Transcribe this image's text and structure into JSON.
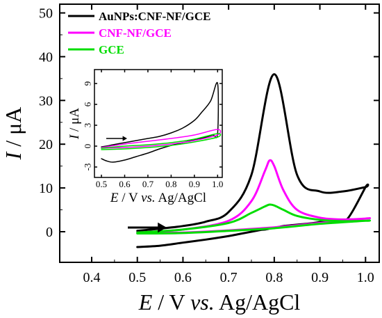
{
  "chart_data": [
    {
      "type": "line",
      "xlabel": {
        "var": "E",
        "rest": " / V ",
        "italic": "vs.",
        "ref": " Ag/AgCl"
      },
      "ylabel": {
        "var": "I",
        "rest": " / μA"
      },
      "xlim": [
        0.33,
        1.03
      ],
      "ylim": [
        -7,
        52
      ],
      "xticks": [
        "0.4",
        "0.5",
        "0.6",
        "0.7",
        "0.8",
        "0.9",
        "1.0"
      ],
      "yticks": [
        "0",
        "10",
        "20",
        "30",
        "40",
        "50"
      ],
      "legend_position": "top-left",
      "annotation": "arrow pointing right (scan direction)",
      "series": [
        {
          "name": "AuNPs:CNF-NF/GCE",
          "color": "#000000",
          "x": [
            0.5,
            0.55,
            0.6,
            0.65,
            0.7,
            0.72,
            0.74,
            0.76,
            0.77,
            0.78,
            0.79,
            0.8,
            0.81,
            0.82,
            0.84,
            0.86,
            0.88,
            0.9,
            0.93,
            0.96,
            1.0,
            1.0,
            0.95,
            0.9,
            0.85,
            0.8,
            0.75,
            0.7,
            0.65,
            0.6,
            0.55,
            0.52,
            0.5
          ],
          "y": [
            -3.5,
            -3.2,
            -2.5,
            -1.8,
            -1.0,
            -0.6,
            -0.2,
            0.2,
            0.4,
            0.5,
            0.7,
            0.9,
            1.1,
            1.3,
            1.5,
            1.7,
            1.9,
            2.2,
            2.5,
            2.9,
            10.2,
            10.2,
            9.2,
            9.2,
            13.0,
            36.0,
            13.0,
            4.5,
            2.3,
            1.3,
            0.7,
            0.4,
            0.2
          ]
        },
        {
          "name": "CNF-NF/GCE",
          "color": "#ff00ff",
          "x": [
            0.5,
            0.6,
            0.7,
            0.75,
            0.78,
            0.79,
            0.8,
            0.82,
            0.85,
            0.9,
            0.95,
            1.0,
            1.0,
            0.9,
            0.8,
            0.7,
            0.6,
            0.5
          ],
          "y": [
            -0.2,
            0.5,
            2.5,
            7.0,
            14.0,
            16.3,
            15.0,
            9.5,
            5.0,
            3.2,
            2.8,
            3.0,
            3.0,
            2.0,
            1.0,
            0.3,
            -0.2,
            -0.3
          ],
          "y_peak_label": 16.3
        },
        {
          "name": "GCE",
          "color": "#00dd00",
          "x": [
            0.5,
            0.6,
            0.7,
            0.75,
            0.78,
            0.79,
            0.8,
            0.82,
            0.85,
            0.9,
            0.95,
            1.0,
            1.0,
            0.9,
            0.8,
            0.7,
            0.6,
            0.5
          ],
          "y": [
            -0.2,
            0.5,
            2.0,
            4.3,
            5.8,
            6.2,
            6.0,
            5.0,
            3.6,
            2.7,
            2.4,
            2.5,
            2.5,
            1.8,
            0.8,
            0.2,
            -0.3,
            -0.4
          ]
        }
      ]
    },
    {
      "type": "line",
      "inset": true,
      "xlabel": {
        "var": "E",
        "rest": " / V ",
        "italic": "vs.",
        "ref": " Ag/AgCl"
      },
      "ylabel": {
        "var": "I",
        "rest": " / μA"
      },
      "xlim": [
        0.47,
        1.02
      ],
      "ylim": [
        -4.5,
        11
      ],
      "xticks": [
        "0.5",
        "0.6",
        "0.7",
        "0.8",
        "0.9",
        "1.0"
      ],
      "yticks": [
        "-3",
        "0",
        "3",
        "6",
        "9"
      ],
      "annotation": "arrow pointing right (scan direction)",
      "series": [
        {
          "name": "AuNPs:CNF-NF/GCE",
          "color": "#000000",
          "x": [
            0.5,
            0.52,
            0.55,
            0.6,
            0.65,
            0.7,
            0.75,
            0.8,
            0.85,
            0.9,
            0.95,
            0.98,
            1.0,
            1.0,
            0.97,
            0.93,
            0.9,
            0.85,
            0.8,
            0.75,
            0.7,
            0.65,
            0.6,
            0.55,
            0.52,
            0.5
          ],
          "y": [
            -1.8,
            -2.1,
            -2.3,
            -2.0,
            -1.5,
            -1.0,
            -0.4,
            0.1,
            0.5,
            0.9,
            1.3,
            1.6,
            1.8,
            9.0,
            6.5,
            4.8,
            3.7,
            2.6,
            1.9,
            1.4,
            1.1,
            0.8,
            0.5,
            0.2,
            0.0,
            -0.1
          ]
        },
        {
          "name": "CNF-NF/GCE",
          "color": "#ff00ff",
          "x": [
            0.5,
            0.6,
            0.7,
            0.8,
            0.9,
            1.0,
            1.0,
            0.9,
            0.8,
            0.7,
            0.6,
            0.5
          ],
          "y": [
            -0.3,
            -0.2,
            0.0,
            0.3,
            0.8,
            1.6,
            2.4,
            1.6,
            1.1,
            0.7,
            0.3,
            -0.2
          ]
        },
        {
          "name": "GCE",
          "color": "#00dd00",
          "x": [
            0.5,
            0.6,
            0.7,
            0.8,
            0.9,
            1.0,
            1.0,
            0.9,
            0.8,
            0.7,
            0.6,
            0.5
          ],
          "y": [
            -0.5,
            -0.4,
            -0.2,
            0.1,
            0.6,
            1.3,
            1.8,
            1.0,
            0.5,
            0.2,
            0.0,
            -0.3
          ]
        }
      ]
    }
  ]
}
